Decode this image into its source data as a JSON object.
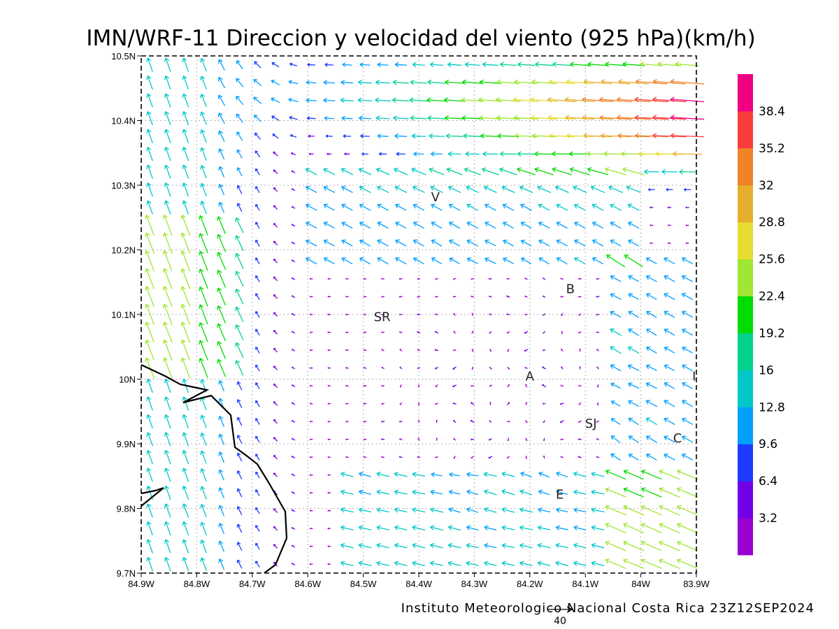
{
  "title": "IMN/WRF-11 Direccion y velocidad del viento (925 hPa)(km/h)",
  "footer": "Instituto Meteorologico Nacional Costa Rica 23Z12SEP2024",
  "reference_vector_label": "40",
  "map": {
    "lon_ticks": [
      "84.9W",
      "84.8W",
      "84.7W",
      "84.6W",
      "84.5W",
      "84.4W",
      "84.3W",
      "84.2W",
      "84.1W",
      "84W",
      "83.9W"
    ],
    "lat_ticks": [
      "9.7N",
      "9.8N",
      "9.9N",
      "10N",
      "10.1N",
      "10.2N",
      "10.3N",
      "10.4N",
      "10.5N"
    ],
    "lon_range": [
      -84.9,
      -83.9
    ],
    "lat_range": [
      9.7,
      10.5
    ],
    "grid": true,
    "city_labels": [
      {
        "text": "V",
        "lon": -84.37,
        "lat": 10.275
      },
      {
        "text": "B",
        "lon": -84.127,
        "lat": 10.133
      },
      {
        "text": "SR",
        "lon": -84.466,
        "lat": 10.09
      },
      {
        "text": "A",
        "lon": -84.2,
        "lat": 9.998
      },
      {
        "text": "SJ",
        "lon": -84.09,
        "lat": 9.925
      },
      {
        "text": "C",
        "lon": -83.934,
        "lat": 9.902
      },
      {
        "text": "E",
        "lon": -84.146,
        "lat": 9.815
      },
      {
        "text": "I",
        "lon": -83.904,
        "lat": 9.998
      }
    ],
    "coastline_color": "#000000"
  },
  "colorbar": {
    "labels": [
      "3.2",
      "6.4",
      "9.6",
      "12.8",
      "16",
      "19.2",
      "22.4",
      "25.6",
      "28.8",
      "32",
      "35.2",
      "38.4"
    ],
    "colors": [
      "#9a00d2",
      "#7200e6",
      "#1e3cff",
      "#00a0ff",
      "#00c8c8",
      "#00d28c",
      "#00dc00",
      "#a0e632",
      "#e6dc32",
      "#e6af2d",
      "#f08228",
      "#fa3c3c",
      "#f00082"
    ]
  },
  "wind_field": {
    "units": "km/h",
    "reference_speed": 40,
    "grid_rows": 29,
    "grid_cols": 31
  }
}
